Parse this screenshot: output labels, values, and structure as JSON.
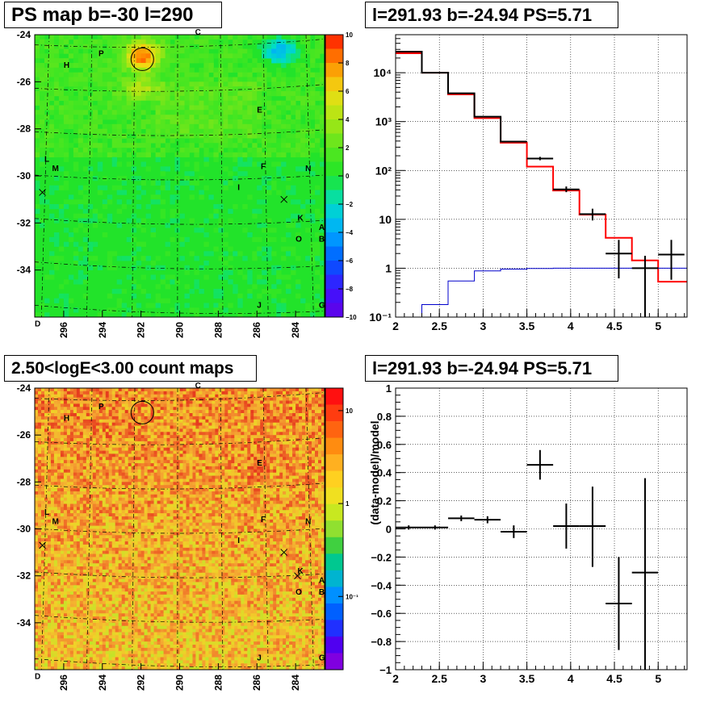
{
  "panels": {
    "ps_map": {
      "title": "PS map b=-30 l=290"
    },
    "count_map": {
      "title": "2.50<logE<3.00 count maps"
    },
    "spectrum": {
      "title": "l=291.93 b=-24.94 PS=5.71"
    },
    "residual": {
      "title": "l=291.93 b=-24.94 PS=5.71"
    }
  },
  "colors": {
    "data_points": "#000000",
    "model_red": "#ff0000",
    "model_blue": "#0000cc",
    "map_background_ps": "#22e32a",
    "map_background_counts": "#f0a040"
  },
  "chart_data": [
    {
      "type": "heatmap",
      "name": "ps_map",
      "x_ticks": [
        "296",
        "294",
        "292",
        "290",
        "288",
        "286",
        "284"
      ],
      "y_ticks": [
        "-24",
        "-26",
        "-28",
        "-30",
        "-32",
        "-34"
      ],
      "xlim": [
        297.5,
        282.5
      ],
      "ylim": [
        -36,
        -24
      ],
      "colorbar": {
        "ticks": [
          "10",
          "8",
          "6",
          "4",
          "2",
          "0",
          "−2",
          "−4",
          "−6",
          "−8",
          "−10"
        ],
        "range": [
          -10,
          10
        ]
      },
      "labels": [
        {
          "t": "C",
          "lon": 289.2,
          "lat": -24.0
        },
        {
          "t": "P",
          "lon": 294.2,
          "lat": -24.9
        },
        {
          "t": "H",
          "lon": 296.0,
          "lat": -25.4
        },
        {
          "t": "E",
          "lon": 286.0,
          "lat": -27.3
        },
        {
          "t": "L",
          "lon": 297.0,
          "lat": -29.4
        },
        {
          "t": "M",
          "lon": 296.6,
          "lat": -29.8
        },
        {
          "t": "F",
          "lon": 285.8,
          "lat": -29.7
        },
        {
          "t": "N",
          "lon": 283.5,
          "lat": -29.8
        },
        {
          "t": "I",
          "lon": 287.0,
          "lat": -30.6
        },
        {
          "t": "K",
          "lon": 283.9,
          "lat": -31.9
        },
        {
          "t": "A",
          "lon": 282.8,
          "lat": -32.3
        },
        {
          "t": "O",
          "lon": 284.0,
          "lat": -32.8
        },
        {
          "t": "B",
          "lon": 282.8,
          "lat": -32.8
        },
        {
          "t": "J",
          "lon": 286.0,
          "lat": -35.6
        },
        {
          "t": "G",
          "lon": 282.8,
          "lat": -35.6
        },
        {
          "t": "D",
          "lon": 297.5,
          "lat": -36.4
        }
      ],
      "crosses": [
        {
          "lon": 297.1,
          "lat": -30.7
        },
        {
          "lon": 284.6,
          "lat": -31.0
        }
      ],
      "circle": {
        "lon": 291.93,
        "lat": -24.94
      }
    },
    {
      "type": "heatmap",
      "name": "count_map",
      "x_ticks": [
        "296",
        "294",
        "292",
        "290",
        "288",
        "286",
        "284"
      ],
      "y_ticks": [
        "-24",
        "-26",
        "-28",
        "-30",
        "-32",
        "-34"
      ],
      "xlim": [
        297.5,
        282.5
      ],
      "ylim": [
        -36,
        -24
      ],
      "colorbar": {
        "ticks": [
          "10",
          "1",
          "10⁻¹"
        ],
        "scale": "log"
      },
      "labels": [
        {
          "t": "C",
          "lon": 289.2,
          "lat": -24.0
        },
        {
          "t": "P",
          "lon": 294.2,
          "lat": -24.9
        },
        {
          "t": "H",
          "lon": 296.0,
          "lat": -25.4
        },
        {
          "t": "E",
          "lon": 286.0,
          "lat": -27.3
        },
        {
          "t": "L",
          "lon": 297.0,
          "lat": -29.4
        },
        {
          "t": "M",
          "lon": 296.6,
          "lat": -29.8
        },
        {
          "t": "F",
          "lon": 285.8,
          "lat": -29.7
        },
        {
          "t": "N",
          "lon": 283.5,
          "lat": -29.8
        },
        {
          "t": "I",
          "lon": 287.0,
          "lat": -30.6
        },
        {
          "t": "K",
          "lon": 283.9,
          "lat": -31.9
        },
        {
          "t": "A",
          "lon": 282.8,
          "lat": -32.3
        },
        {
          "t": "O",
          "lon": 284.0,
          "lat": -32.8
        },
        {
          "t": "B",
          "lon": 282.8,
          "lat": -32.8
        },
        {
          "t": "J",
          "lon": 286.0,
          "lat": -35.6
        },
        {
          "t": "G",
          "lon": 282.8,
          "lat": -35.6
        },
        {
          "t": "D",
          "lon": 297.5,
          "lat": -36.4
        }
      ],
      "crosses": [
        {
          "lon": 297.1,
          "lat": -30.7
        },
        {
          "lon": 284.6,
          "lat": -31.0
        },
        {
          "lon": 283.9,
          "lat": -32.0
        }
      ],
      "circle": {
        "lon": 291.93,
        "lat": -24.94
      }
    },
    {
      "type": "line",
      "name": "spectrum",
      "yscale": "log",
      "xlim": [
        2,
        5.33
      ],
      "ylim": [
        0.1,
        60000
      ],
      "grid": true,
      "x_ticks": [
        "2",
        "2.5",
        "3",
        "3.5",
        "4",
        "4.5",
        "5"
      ],
      "y_ticks": [
        "10⁻¹",
        "1",
        "10",
        "10²",
        "10³",
        "10⁴"
      ],
      "series": [
        {
          "style": "step",
          "color": "#ff0000",
          "edges": [
            2,
            2.3,
            2.6,
            2.9,
            3.2,
            3.5,
            3.8,
            4.1,
            4.4,
            4.7,
            5.0,
            5.33
          ],
          "values": [
            25000,
            10000,
            3600,
            1180,
            370,
            120,
            39,
            12.5,
            4.2,
            1.45,
            0.53
          ]
        },
        {
          "style": "step",
          "color": "#000000",
          "edges": [
            2,
            2.3,
            2.6,
            2.9,
            3.2,
            3.5,
            3.8,
            4.1,
            4.4,
            4.7,
            5.0,
            5.33
          ],
          "values": [
            27000,
            10000,
            3800,
            1260,
            390,
            null,
            null,
            null,
            null,
            null,
            null
          ]
        },
        {
          "style": "step",
          "color": "#0000cc",
          "edges": [
            2,
            2.3,
            2.6,
            2.9,
            3.2,
            3.5,
            3.8,
            4.1,
            4.4,
            4.7,
            5.0,
            5.33
          ],
          "values": [
            0.1,
            0.18,
            0.55,
            0.88,
            0.96,
            0.99,
            1.0,
            1.0,
            1.0,
            1.0,
            1.0
          ]
        },
        {
          "style": "errorbar",
          "color": "#000000",
          "points": [
            {
              "x": 3.65,
              "xerr": 0.15,
              "y": 175,
              "ylo": 162,
              "yhi": 190
            },
            {
              "x": 3.95,
              "xerr": 0.15,
              "y": 41,
              "ylo": 36,
              "yhi": 47
            },
            {
              "x": 4.25,
              "xerr": 0.15,
              "y": 12.8,
              "ylo": 9.5,
              "yhi": 16.5
            },
            {
              "x": 4.55,
              "xerr": 0.15,
              "y": 2.0,
              "ylo": 0.62,
              "yhi": 3.8
            },
            {
              "x": 4.85,
              "xerr": 0.15,
              "y": 1.0,
              "ylo": 0.1,
              "yhi": 1.8
            },
            {
              "x": 5.15,
              "xerr": 0.15,
              "y": 1.9,
              "ylo": 0.58,
              "yhi": 3.8
            }
          ]
        }
      ]
    },
    {
      "type": "scatter",
      "name": "residual",
      "ylabel": "(data-model)/model",
      "xlim": [
        2,
        5.33
      ],
      "ylim": [
        -1,
        1
      ],
      "grid": true,
      "x_ticks": [
        "2",
        "2.5",
        "3",
        "3.5",
        "4",
        "4.5",
        "5"
      ],
      "y_ticks": [
        "1",
        "0.8",
        "0.6",
        "0.4",
        "0.2",
        "0",
        "−0.2",
        "−0.4",
        "−0.6",
        "−0.8",
        "−1"
      ],
      "points": [
        {
          "x": 2.15,
          "xerr": 0.15,
          "y": 0.01,
          "ylo": -0.005,
          "yhi": 0.025
        },
        {
          "x": 2.45,
          "xerr": 0.15,
          "y": 0.01,
          "ylo": -0.005,
          "yhi": 0.025
        },
        {
          "x": 2.75,
          "xerr": 0.15,
          "y": 0.075,
          "ylo": 0.055,
          "yhi": 0.095
        },
        {
          "x": 3.05,
          "xerr": 0.15,
          "y": 0.065,
          "ylo": 0.04,
          "yhi": 0.09
        },
        {
          "x": 3.35,
          "xerr": 0.15,
          "y": -0.02,
          "ylo": -0.065,
          "yhi": 0.025
        },
        {
          "x": 3.65,
          "xerr": 0.15,
          "y": 0.455,
          "ylo": 0.35,
          "yhi": 0.56
        },
        {
          "x": 3.95,
          "xerr": 0.15,
          "y": 0.02,
          "ylo": -0.14,
          "yhi": 0.18
        },
        {
          "x": 4.25,
          "xerr": 0.15,
          "y": 0.02,
          "ylo": -0.27,
          "yhi": 0.3
        },
        {
          "x": 4.55,
          "xerr": 0.15,
          "y": -0.53,
          "ylo": -0.86,
          "yhi": -0.2
        },
        {
          "x": 4.85,
          "xerr": 0.15,
          "y": -0.31,
          "ylo": -1.0,
          "yhi": 0.36
        }
      ]
    }
  ]
}
